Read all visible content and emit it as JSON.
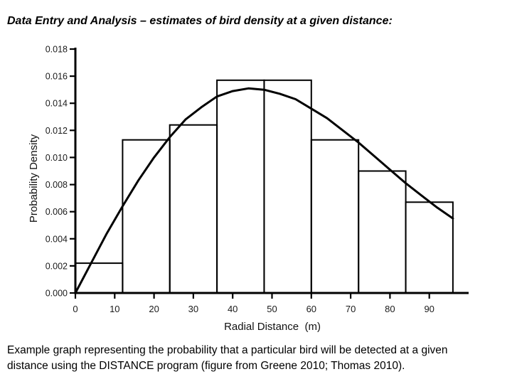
{
  "page": {
    "title": "Data Entry and Analysis – estimates of bird density at a given distance:",
    "caption_line1": "Example graph representing the probability that a particular bird will be detected at a given",
    "caption_line2": "distance using the DISTANCE program (figure from Greene 2010; Thomas 2010)."
  },
  "chart_data": {
    "type": "bar",
    "subtype": "histogram of detection distances with fitted detection-function curve",
    "title": "",
    "xlabel": "Radial Distance  (m)",
    "ylabel": "Probability Density",
    "xlim": [
      0,
      100
    ],
    "ylim": [
      0,
      0.018
    ],
    "grid": false,
    "legend": false,
    "x_ticks": [
      0,
      10,
      20,
      30,
      40,
      50,
      60,
      70,
      80,
      90
    ],
    "y_tick_labels": [
      "0.000",
      "0.002",
      "0.004",
      "0.006",
      "0.008",
      "0.010",
      "0.012",
      "0.014",
      "0.016",
      "0.018"
    ],
    "bins": {
      "edges": [
        0,
        12,
        24,
        36,
        48,
        60,
        72,
        84,
        96
      ],
      "values": [
        0.0022,
        0.0113,
        0.0124,
        0.0157,
        0.0157,
        0.0113,
        0.009,
        0.0067
      ]
    },
    "curve": {
      "name": "fitted detection probability density",
      "x": [
        0,
        4,
        8,
        12,
        16,
        20,
        24,
        28,
        32,
        36,
        40,
        44,
        48,
        52,
        56,
        60,
        64,
        68,
        72,
        76,
        80,
        84,
        88,
        92,
        96
      ],
      "y": [
        0.0,
        0.0022,
        0.0044,
        0.0064,
        0.0083,
        0.01,
        0.0115,
        0.0128,
        0.0137,
        0.0145,
        0.0149,
        0.0151,
        0.015,
        0.0147,
        0.0143,
        0.0136,
        0.0129,
        0.012,
        0.0111,
        0.0101,
        0.0091,
        0.0081,
        0.0072,
        0.0063,
        0.0055
      ]
    }
  },
  "colors": {
    "ink": "#000000",
    "background": "#ffffff"
  }
}
